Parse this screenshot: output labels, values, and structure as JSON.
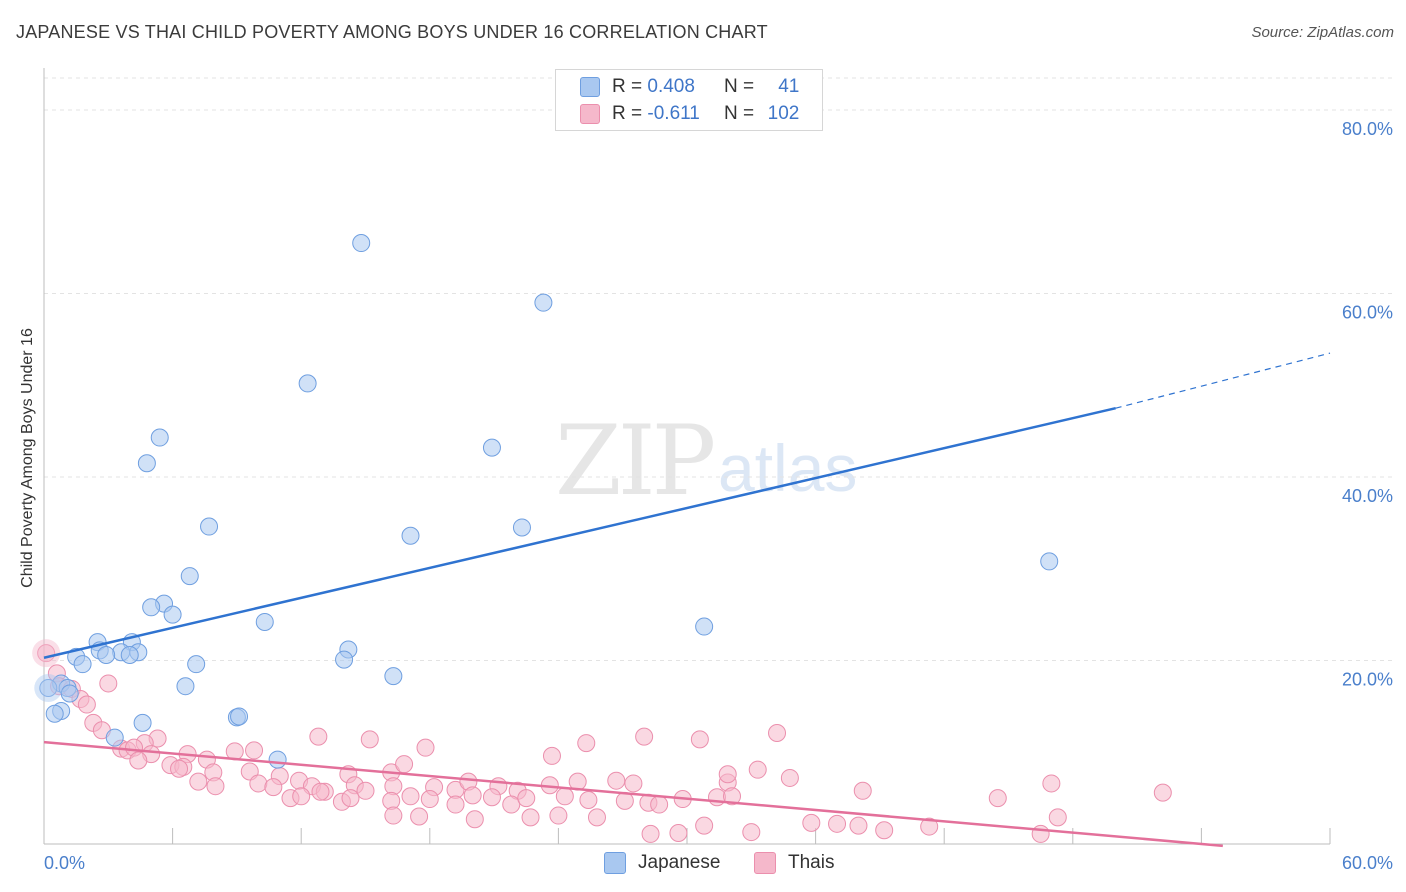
{
  "header": {
    "title": "JAPANESE VS THAI CHILD POVERTY AMONG BOYS UNDER 16 CORRELATION CHART",
    "source": "Source: ZipAtlas.com"
  },
  "watermark": {
    "zip": "ZIP",
    "atlas": "atlas"
  },
  "legend": {
    "rows": [
      {
        "r_label": "R =",
        "r_value": "0.408",
        "n_label": "N =",
        "n_value": "41",
        "color": "#a9c8f0"
      },
      {
        "r_label": "R =",
        "r_value": "-0.611",
        "n_label": "N =",
        "n_value": "102",
        "color": "#f5b8cb"
      }
    ]
  },
  "bottom_legend": {
    "japanese": "Japanese",
    "thais": "Thais"
  },
  "colors": {
    "japanese_fill": "#a9c8f0",
    "japanese_stroke": "#6f9fe0",
    "japanese_line": "#2f73d0",
    "thai_fill": "#f5b8cb",
    "thai_stroke": "#eb8fad",
    "thai_line": "#e3709a",
    "tick_text": "#4a7fcb",
    "grid": "#e3e3e3"
  },
  "chart_data": {
    "type": "scatter",
    "title": "JAPANESE VS THAI CHILD POVERTY AMONG BOYS UNDER 16 CORRELATION CHART",
    "xlabel": "",
    "ylabel": "Child Poverty Among Boys Under 16",
    "xlim": [
      0,
      60
    ],
    "ylim": [
      0,
      80
    ],
    "x_ticks": [
      "0.0%",
      "60.0%"
    ],
    "y_ticks": [
      "20.0%",
      "40.0%",
      "60.0%",
      "80.0%"
    ],
    "grid": true,
    "series": [
      {
        "name": "Japanese",
        "r": 0.408,
        "n": 41,
        "trend": {
          "x0": 0,
          "y0": 20.3,
          "x1": 50,
          "y1": 47.5,
          "dash_to_x": 60,
          "dash_to_y": 53.5
        },
        "points": [
          [
            14.8,
            65.5
          ],
          [
            23.3,
            59.0
          ],
          [
            12.3,
            50.2
          ],
          [
            5.4,
            44.3
          ],
          [
            20.9,
            43.2
          ],
          [
            4.8,
            41.5
          ],
          [
            7.7,
            34.6
          ],
          [
            22.3,
            34.5
          ],
          [
            17.1,
            33.6
          ],
          [
            46.9,
            30.8
          ],
          [
            6.8,
            29.2
          ],
          [
            5.6,
            26.2
          ],
          [
            5.0,
            25.8
          ],
          [
            6.0,
            25.0
          ],
          [
            10.3,
            24.2
          ],
          [
            30.8,
            23.7
          ],
          [
            2.5,
            22.0
          ],
          [
            4.1,
            22.0
          ],
          [
            2.6,
            21.1
          ],
          [
            3.6,
            20.9
          ],
          [
            4.4,
            20.9
          ],
          [
            14.2,
            21.2
          ],
          [
            2.9,
            20.6
          ],
          [
            1.5,
            20.4
          ],
          [
            4.0,
            20.6
          ],
          [
            1.8,
            19.6
          ],
          [
            7.1,
            19.6
          ],
          [
            14.0,
            20.1
          ],
          [
            16.3,
            18.3
          ],
          [
            0.8,
            17.5
          ],
          [
            6.6,
            17.2
          ],
          [
            1.1,
            17.0
          ],
          [
            1.2,
            16.4
          ],
          [
            0.2,
            17.0
          ],
          [
            0.8,
            14.5
          ],
          [
            0.5,
            14.2
          ],
          [
            9.0,
            13.8
          ],
          [
            9.1,
            13.9
          ],
          [
            4.6,
            13.2
          ],
          [
            3.3,
            11.6
          ],
          [
            10.9,
            9.2
          ]
        ]
      },
      {
        "name": "Thais",
        "r": -0.611,
        "n": 102,
        "trend": {
          "x0": 0,
          "y0": 11.1,
          "x1": 55,
          "y1": -0.2
        },
        "points": [
          [
            0.1,
            20.8
          ],
          [
            0.6,
            18.6
          ],
          [
            3.0,
            17.5
          ],
          [
            0.7,
            17.2
          ],
          [
            1.3,
            16.9
          ],
          [
            1.7,
            15.8
          ],
          [
            2.0,
            15.2
          ],
          [
            2.3,
            13.2
          ],
          [
            2.7,
            12.4
          ],
          [
            5.3,
            11.5
          ],
          [
            4.7,
            11.0
          ],
          [
            3.6,
            10.4
          ],
          [
            3.9,
            10.2
          ],
          [
            4.2,
            10.5
          ],
          [
            5.0,
            9.8
          ],
          [
            6.7,
            9.8
          ],
          [
            7.6,
            9.2
          ],
          [
            8.9,
            10.1
          ],
          [
            9.8,
            10.2
          ],
          [
            12.8,
            11.7
          ],
          [
            15.2,
            11.4
          ],
          [
            17.8,
            10.5
          ],
          [
            23.7,
            9.6
          ],
          [
            25.3,
            11.0
          ],
          [
            28.0,
            11.7
          ],
          [
            30.6,
            11.4
          ],
          [
            34.2,
            12.1
          ],
          [
            4.4,
            9.1
          ],
          [
            5.9,
            8.6
          ],
          [
            6.5,
            8.4
          ],
          [
            6.3,
            8.2
          ],
          [
            7.9,
            7.8
          ],
          [
            9.6,
            7.9
          ],
          [
            11.0,
            7.4
          ],
          [
            14.2,
            7.6
          ],
          [
            16.2,
            7.8
          ],
          [
            16.8,
            8.7
          ],
          [
            33.3,
            8.1
          ],
          [
            34.8,
            7.2
          ],
          [
            7.2,
            6.8
          ],
          [
            8.0,
            6.3
          ],
          [
            10.0,
            6.6
          ],
          [
            10.7,
            6.2
          ],
          [
            11.9,
            6.9
          ],
          [
            12.5,
            6.3
          ],
          [
            13.1,
            5.7
          ],
          [
            14.5,
            6.4
          ],
          [
            15.0,
            5.8
          ],
          [
            16.3,
            6.3
          ],
          [
            18.2,
            6.2
          ],
          [
            19.2,
            5.9
          ],
          [
            19.8,
            6.8
          ],
          [
            21.2,
            6.3
          ],
          [
            22.1,
            5.8
          ],
          [
            23.6,
            6.4
          ],
          [
            24.9,
            6.8
          ],
          [
            26.7,
            6.9
          ],
          [
            27.5,
            6.6
          ],
          [
            31.9,
            6.7
          ],
          [
            31.9,
            7.6
          ],
          [
            47.0,
            6.6
          ],
          [
            11.5,
            5.0
          ],
          [
            12.0,
            5.2
          ],
          [
            12.9,
            5.7
          ],
          [
            13.9,
            4.6
          ],
          [
            14.3,
            5.0
          ],
          [
            16.2,
            4.7
          ],
          [
            17.1,
            5.2
          ],
          [
            18.0,
            4.9
          ],
          [
            19.2,
            4.3
          ],
          [
            20.0,
            5.3
          ],
          [
            20.9,
            5.1
          ],
          [
            21.8,
            4.3
          ],
          [
            22.5,
            5.0
          ],
          [
            24.3,
            5.2
          ],
          [
            25.4,
            4.8
          ],
          [
            27.1,
            4.7
          ],
          [
            28.2,
            4.5
          ],
          [
            28.7,
            4.3
          ],
          [
            29.8,
            4.9
          ],
          [
            31.4,
            5.1
          ],
          [
            32.1,
            5.2
          ],
          [
            38.2,
            5.8
          ],
          [
            44.5,
            5.0
          ],
          [
            52.2,
            5.6
          ],
          [
            16.3,
            3.1
          ],
          [
            17.5,
            3.0
          ],
          [
            20.1,
            2.7
          ],
          [
            22.7,
            2.9
          ],
          [
            24.0,
            3.1
          ],
          [
            25.8,
            2.9
          ],
          [
            30.8,
            2.0
          ],
          [
            33.0,
            1.3
          ],
          [
            35.8,
            2.3
          ],
          [
            37.0,
            2.2
          ],
          [
            38.0,
            2.0
          ],
          [
            39.2,
            1.5
          ],
          [
            41.3,
            1.9
          ],
          [
            28.3,
            1.1
          ],
          [
            29.6,
            1.2
          ],
          [
            46.5,
            1.1
          ],
          [
            47.3,
            2.9
          ]
        ]
      }
    ]
  }
}
